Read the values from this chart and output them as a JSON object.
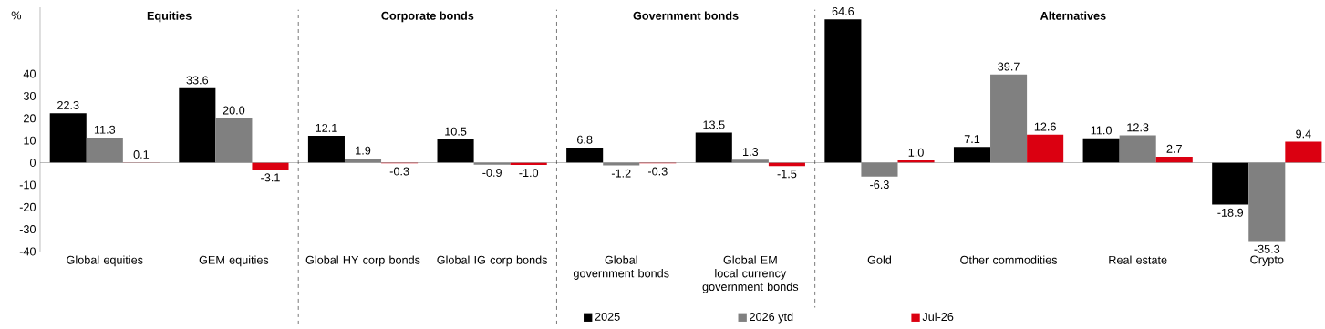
{
  "chart_data": {
    "type": "bar",
    "ylabel": "%",
    "categories": [
      "Global equities",
      "GEM equities",
      "Global HY corp bonds",
      "Global IG corp bonds",
      "Global government bonds",
      "Global EM local currency government bonds",
      "Gold",
      "Other commodities",
      "Real estate",
      "Crypto"
    ],
    "series": [
      {
        "name": "2025",
        "color": "#000000",
        "values": [
          22.3,
          33.6,
          12.1,
          10.5,
          6.8,
          13.5,
          64.6,
          7.1,
          11.0,
          -18.9
        ],
        "value_labels": [
          "22.3",
          "33.6",
          "12.1",
          "10.5",
          "6.8",
          "13.5",
          "64.6",
          "7.1",
          "11.0",
          "-18.9"
        ]
      },
      {
        "name": "2026 ytd",
        "color": "#808080",
        "values": [
          11.3,
          20.0,
          1.9,
          -0.9,
          -1.2,
          1.3,
          -6.3,
          39.7,
          12.3,
          -35.3
        ],
        "value_labels": [
          "11.3",
          "20.0",
          "1.9",
          "-0.9",
          "-1.2",
          "1.3",
          "-6.3",
          "39.7",
          "12.3",
          "-35.3"
        ]
      },
      {
        "name": "Jul-26",
        "color": "#db0011",
        "values": [
          0.1,
          -3.1,
          -0.3,
          -1.0,
          -0.3,
          -1.5,
          1.0,
          12.6,
          2.7,
          9.4
        ],
        "value_labels": [
          "0.1",
          "-3.1",
          "-0.3",
          "-1.0",
          "-0.3",
          "-1.5",
          "1.0",
          "12.6",
          "2.7",
          "9.4"
        ]
      }
    ],
    "ylim": [
      -40,
      70
    ],
    "yticks": [
      -40,
      -30,
      -20,
      -10,
      0,
      10,
      20,
      30,
      40
    ],
    "annotations": [
      "Equities",
      "Corporate bonds",
      "Government bonds",
      "Alternatives"
    ],
    "legend": "bottom",
    "grid": false
  }
}
